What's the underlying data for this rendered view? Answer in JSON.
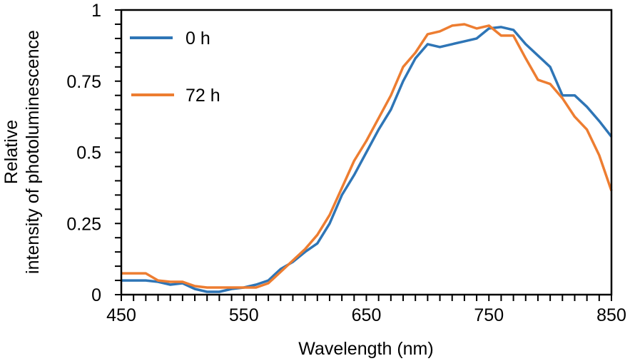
{
  "chart_data": {
    "type": "line",
    "title": "",
    "xlabel": "Wavelength (nm)",
    "ylabel_lines": [
      "Relative",
      "intensity of photoluminescence"
    ],
    "xlim": [
      450,
      850
    ],
    "ylim": [
      0,
      1
    ],
    "x_ticks": [
      450,
      550,
      650,
      750,
      850
    ],
    "x_tick_labels": [
      "450",
      "550",
      "650",
      "750",
      "850"
    ],
    "y_ticks": [
      0,
      0.25,
      0.5,
      0.75,
      1
    ],
    "y_tick_labels": [
      "0",
      "0.25",
      "0.5",
      "0.75",
      "1"
    ],
    "grid": false,
    "legend_position": "top-left",
    "x": [
      450,
      460,
      470,
      480,
      490,
      500,
      510,
      520,
      530,
      540,
      550,
      560,
      570,
      580,
      590,
      600,
      610,
      620,
      630,
      640,
      650,
      660,
      670,
      680,
      690,
      700,
      710,
      720,
      730,
      740,
      750,
      760,
      770,
      780,
      790,
      800,
      810,
      820,
      830,
      840,
      850
    ],
    "series": [
      {
        "name": "0 h",
        "color": "#2e75b6",
        "values": [
          0.05,
          0.05,
          0.05,
          0.045,
          0.035,
          0.04,
          0.02,
          0.01,
          0.01,
          0.02,
          0.025,
          0.035,
          0.05,
          0.09,
          0.115,
          0.15,
          0.18,
          0.25,
          0.35,
          0.42,
          0.5,
          0.58,
          0.65,
          0.75,
          0.83,
          0.88,
          0.87,
          0.88,
          0.89,
          0.9,
          0.935,
          0.94,
          0.93,
          0.88,
          0.84,
          0.8,
          0.7,
          0.7,
          0.66,
          0.61,
          0.555
        ]
      },
      {
        "name": "72 h",
        "color": "#ed7d31",
        "values": [
          0.075,
          0.075,
          0.075,
          0.05,
          0.045,
          0.045,
          0.03,
          0.025,
          0.025,
          0.025,
          0.025,
          0.025,
          0.04,
          0.08,
          0.12,
          0.16,
          0.21,
          0.28,
          0.375,
          0.47,
          0.54,
          0.62,
          0.7,
          0.8,
          0.85,
          0.915,
          0.925,
          0.945,
          0.95,
          0.935,
          0.945,
          0.91,
          0.91,
          0.83,
          0.755,
          0.74,
          0.69,
          0.625,
          0.58,
          0.49,
          0.365
        ]
      }
    ]
  }
}
